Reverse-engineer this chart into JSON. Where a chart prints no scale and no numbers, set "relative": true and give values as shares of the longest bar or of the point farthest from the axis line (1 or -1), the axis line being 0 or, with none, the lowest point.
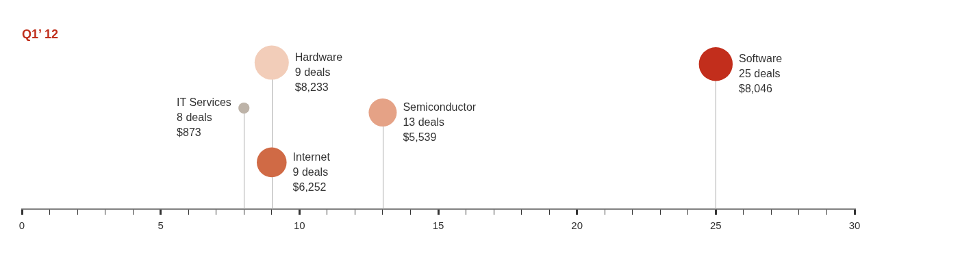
{
  "chart_data": {
    "type": "lollipop",
    "title": "Q1’ 12",
    "relative": true,
    "xlim": [
      0,
      30
    ],
    "xticks": [
      0,
      {
        "value": 1,
        "label": null
      },
      {
        "value": 2,
        "label": null
      },
      {
        "value": 3,
        "label": null
      },
      {
        "value": 4,
        "label": null
      },
      5,
      {
        "value": 6,
        "label": null
      },
      {
        "value": 7,
        "label": null
      },
      {
        "value": 8,
        "label": null
      },
      {
        "value": 9,
        "label": null
      },
      10,
      {
        "value": 11,
        "label": null
      },
      {
        "value": 12,
        "label": null
      },
      {
        "value": 13,
        "label": null
      },
      {
        "value": 14,
        "label": null
      },
      15,
      {
        "value": 16,
        "label": null
      },
      {
        "value": 17,
        "label": null
      },
      {
        "value": 18,
        "label": null
      },
      {
        "value": 19,
        "label": null
      },
      20,
      {
        "value": 21,
        "label": null
      },
      {
        "value": 22,
        "label": null
      },
      {
        "value": 23,
        "label": null
      },
      {
        "value": 24,
        "label": null
      },
      25,
      {
        "value": 26,
        "label": null
      },
      {
        "value": 27,
        "label": null
      },
      {
        "value": 28,
        "label": null
      },
      {
        "value": 29,
        "label": null
      },
      30
    ],
    "x": [
      9,
      8,
      9,
      13,
      25
    ],
    "values": [
      1,
      0.69,
      0.32,
      0.66,
      0.99
    ],
    "sizes": [
      1,
      0.106,
      0.759,
      0.673,
      0.977
    ],
    "colors": [
      "#f2cdb9",
      "#bdb3a8",
      "#d06a45",
      "#e5a286",
      "#c22e1c"
    ],
    "annotations": [
      {
        "text": "Hardware\n9 deals\n$8,233",
        "x": 9,
        "y": 1
      },
      {
        "text": "IT Services\n8 deals\n$873",
        "x": 8,
        "y": 0.69
      },
      {
        "text": "Internet\n9 deals\n$6,252",
        "x": 9,
        "y": 0.32
      },
      {
        "text": "Semiconductor\n13 deals\n$5,539",
        "x": 13,
        "y": 0.66
      },
      {
        "text": "Software\n25 deals\n$8,046",
        "x": 25,
        "y": 0.99
      }
    ]
  }
}
